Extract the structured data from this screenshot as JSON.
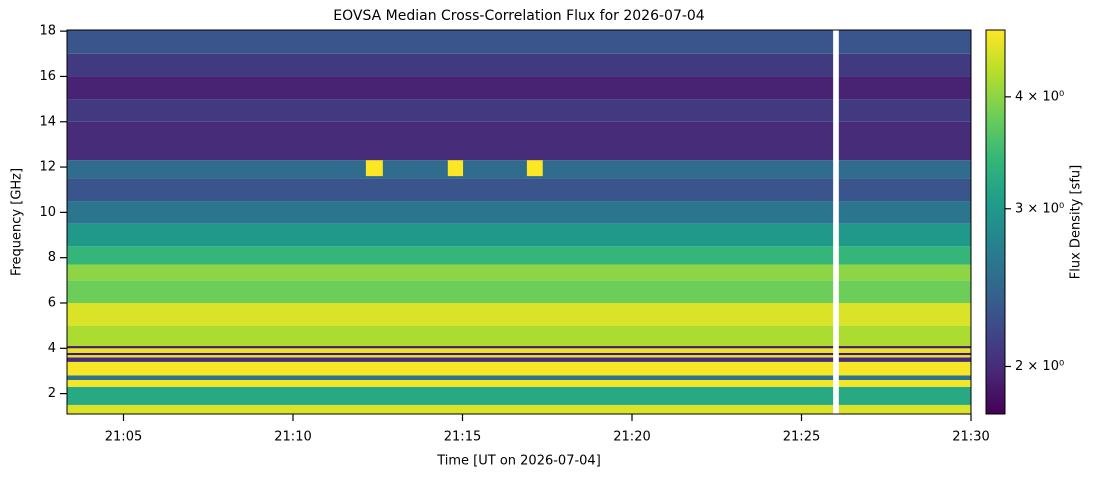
{
  "chart_data": {
    "type": "heatmap",
    "title": "EOVSA Median Cross-Correlation Flux for 2026-07-04",
    "xlabel": "Time [UT on 2026-07-04]",
    "ylabel": "Frequency [GHz]",
    "colorbar_label": "Flux Density [sfu]",
    "colormap": "viridis",
    "xlim": [
      "21:03:20",
      "21:30:00"
    ],
    "xticks": [
      "21:05",
      "21:10",
      "21:15",
      "21:20",
      "21:25",
      "21:30"
    ],
    "ylim": [
      1.1,
      18.05
    ],
    "yticks": [
      2,
      4,
      6,
      8,
      10,
      12,
      14,
      16,
      18
    ],
    "clim": [
      1.77,
      4.75
    ],
    "cscale": "log",
    "cticks": [
      {
        "value": 2,
        "label": "2 × 10⁰"
      },
      {
        "value": 3,
        "label": "3 × 10⁰"
      },
      {
        "value": 4,
        "label": "4 × 10⁰"
      }
    ],
    "y_bins": [
      1.1,
      1.5,
      2.3,
      2.6,
      2.8,
      3.4,
      3.6,
      3.7,
      3.8,
      4.0,
      4.1,
      5.0,
      6.0,
      7.0,
      7.7,
      8.5,
      9.5,
      10.5,
      11.5,
      12.3,
      14.0,
      15.0,
      16.0,
      17.0,
      18.05
    ],
    "values": [
      4.5,
      3.2,
      4.7,
      2.6,
      4.7,
      2.0,
      4.6,
      1.9,
      4.6,
      1.9,
      4.2,
      4.5,
      3.8,
      4.0,
      3.4,
      3.0,
      2.6,
      2.3,
      2.5,
      2.0,
      2.1,
      1.95,
      2.1,
      2.3
    ],
    "bursts": [
      {
        "x": [
          "21:12:09",
          "21:12:39"
        ],
        "y": [
          11.6,
          12.3
        ],
        "value": 4.75
      },
      {
        "x": [
          "21:14:34",
          "21:15:01"
        ],
        "y": [
          11.6,
          12.3
        ],
        "value": 4.75
      },
      {
        "x": [
          "21:16:54",
          "21:17:22"
        ],
        "y": [
          11.6,
          12.3
        ],
        "value": 4.75
      }
    ],
    "gaps": [
      {
        "x": [
          "21:25:56",
          "21:26:06"
        ]
      }
    ]
  }
}
